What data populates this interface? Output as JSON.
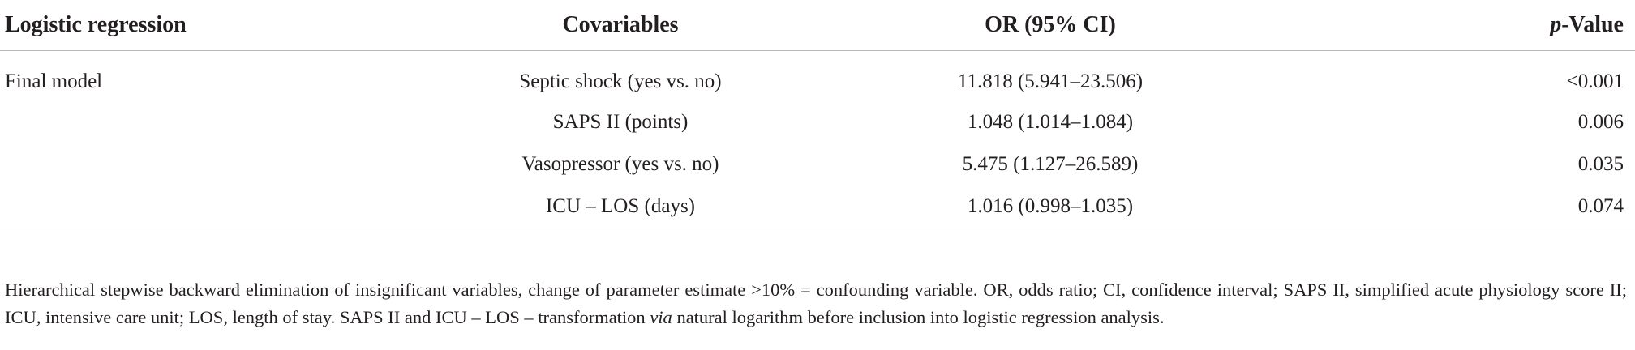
{
  "table": {
    "headers": {
      "col1": "Logistic regression",
      "col2": "Covariables",
      "col3": "OR (95% CI)",
      "col4_italic": "p",
      "col4_rest": "-Value"
    },
    "rows": [
      {
        "group": "Final model",
        "covariable": "Septic shock (yes vs. no)",
        "or_ci": "11.818 (5.941–23.506)",
        "p_value": "<0.001"
      },
      {
        "group": "",
        "covariable": "SAPS II (points)",
        "or_ci": "1.048 (1.014–1.084)",
        "p_value": "0.006"
      },
      {
        "group": "",
        "covariable": "Vasopressor (yes vs. no)",
        "or_ci": "5.475 (1.127–26.589)",
        "p_value": "0.035"
      },
      {
        "group": "",
        "covariable": "ICU – LOS (days)",
        "or_ci": "1.016 (0.998–1.035)",
        "p_value": "0.074"
      }
    ]
  },
  "footnote": {
    "part1": "Hierarchical stepwise backward elimination of insignificant variables, change of parameter estimate >10% = confounding variable. OR, odds ratio; CI, confidence interval; SAPS II, simplified acute physiology score II; ICU, intensive care unit; LOS, length of stay. SAPS II and ICU – LOS – transformation ",
    "italic": "via",
    "part2": " natural logarithm before inclusion into logistic regression analysis."
  }
}
